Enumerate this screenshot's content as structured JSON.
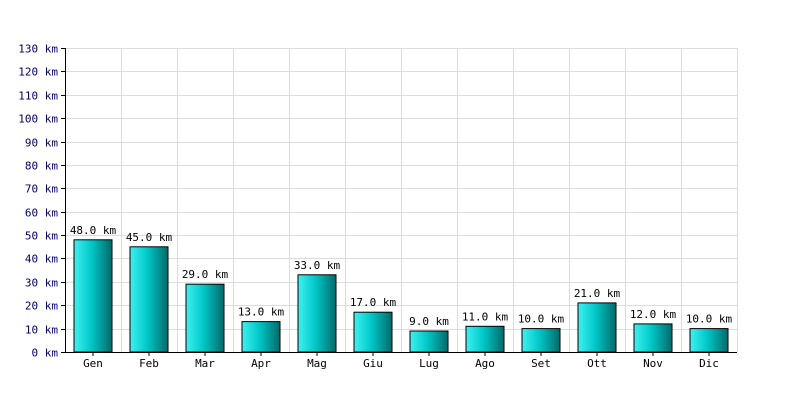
{
  "chart_data": {
    "type": "bar",
    "categories": [
      "Gen",
      "Feb",
      "Mar",
      "Apr",
      "Mag",
      "Giu",
      "Lug",
      "Ago",
      "Set",
      "Ott",
      "Nov",
      "Dic"
    ],
    "values": [
      48.0,
      45.0,
      29.0,
      13.0,
      33.0,
      17.0,
      9.0,
      11.0,
      10.0,
      21.0,
      12.0,
      10.0
    ],
    "data_labels": [
      "48.0 km",
      "45.0 km",
      "29.0 km",
      "13.0 km",
      "33.0 km",
      "17.0 km",
      "9.0 km",
      "11.0 km",
      "10.0 km",
      "21.0 km",
      "12.0 km",
      "10.0 km"
    ],
    "y_ticks": [
      0,
      10,
      20,
      30,
      40,
      50,
      60,
      70,
      80,
      90,
      100,
      110,
      120,
      130
    ],
    "y_tick_labels": [
      "0 km",
      "10 km",
      "20 km",
      "30 km",
      "40 km",
      "50 km",
      "60 km",
      "70 km",
      "80 km",
      "90 km",
      "100 km",
      "110 km",
      "120 km",
      "130 km"
    ],
    "ylim": [
      0,
      130
    ],
    "title": "",
    "xlabel": "",
    "ylabel": "",
    "grid": true,
    "colors": {
      "bar_light": "#40f0f0",
      "bar_mid": "#00c8c8",
      "bar_dark": "#006a6a",
      "y_tick_text": "#000066",
      "grid": "#dcdcdc"
    }
  }
}
